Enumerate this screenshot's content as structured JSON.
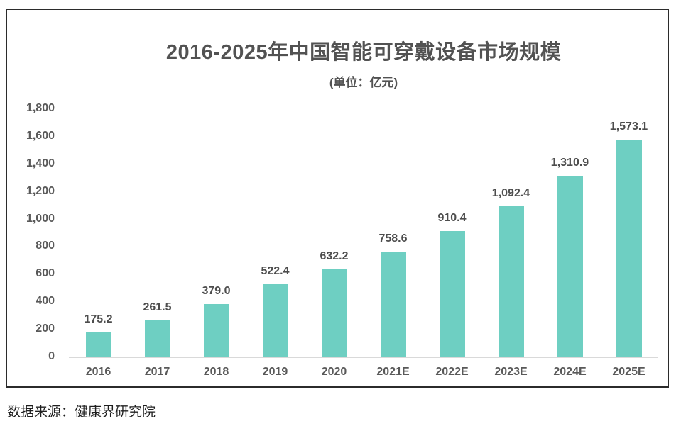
{
  "chart_data": {
    "type": "bar",
    "title": "2016-2025年中国智能可穿戴设备市场规模",
    "subtitle": "(单位：亿元)",
    "categories": [
      "2016",
      "2017",
      "2018",
      "2019",
      "2020",
      "2021E",
      "2022E",
      "2023E",
      "2024E",
      "2025E"
    ],
    "values": [
      175.2,
      261.5,
      379.0,
      522.4,
      632.2,
      758.6,
      910.4,
      1092.4,
      1310.9,
      1573.1
    ],
    "value_labels": [
      "175.2",
      "261.5",
      "379.0",
      "522.4",
      "632.2",
      "758.6",
      "910.4",
      "1,092.4",
      "1,310.9",
      "1,573.1"
    ],
    "xlabel": "",
    "ylabel": "",
    "ylim": [
      0,
      1800
    ],
    "ytick_step": 200,
    "ytick_labels": [
      "0",
      "200",
      "400",
      "600",
      "800",
      "1,000",
      "1,200",
      "1,400",
      "1,600",
      "1,800"
    ],
    "grid": false,
    "legend": false,
    "bar_color": "#6ECFC2",
    "axis_line_color": "#d9d9d9",
    "text_color": "#595959"
  },
  "source": {
    "text": "数据来源：健康界研究院"
  }
}
